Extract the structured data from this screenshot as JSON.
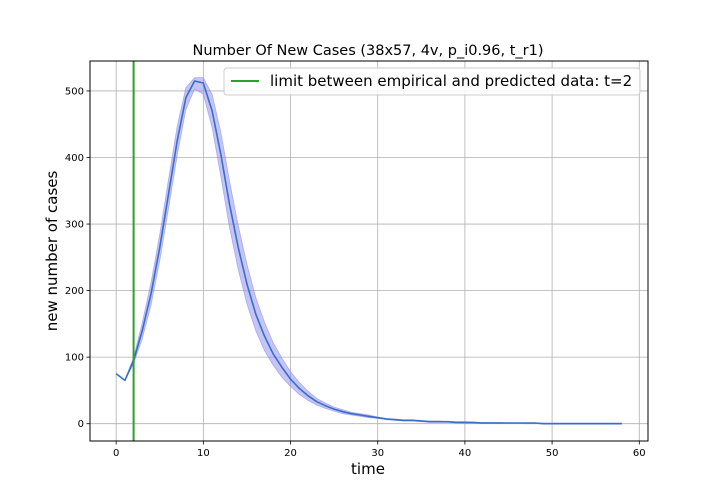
{
  "chart_data": {
    "type": "line",
    "title": "Number Of New Cases (38x57, 4v, p_i0.96, t_r1)",
    "xlabel": "time",
    "ylabel": "new number of cases",
    "xlim": [
      -3,
      61
    ],
    "ylim": [
      -26,
      545
    ],
    "xticks": [
      0,
      10,
      20,
      30,
      40,
      50,
      60
    ],
    "yticks": [
      0,
      100,
      200,
      300,
      400,
      500
    ],
    "grid": true,
    "legend_position": "top-right",
    "series": [
      {
        "name": "",
        "color": "#3a6fc4",
        "x": [
          0,
          1,
          2,
          3,
          4,
          5,
          6,
          7,
          8,
          9,
          10,
          11,
          12,
          13,
          14,
          15,
          16,
          17,
          18,
          19,
          20,
          21,
          22,
          23,
          24,
          25,
          26,
          27,
          28,
          29,
          30,
          31,
          32,
          33,
          34,
          35,
          36,
          37,
          38,
          39,
          40,
          41,
          42,
          43,
          44,
          45,
          46,
          47,
          48,
          49,
          50,
          51,
          52,
          53,
          54,
          55,
          56,
          57,
          58
        ],
        "y": [
          75,
          65,
          95,
          140,
          195,
          265,
          345,
          425,
          490,
          515,
          512,
          470,
          405,
          330,
          265,
          210,
          165,
          132,
          105,
          85,
          67,
          53,
          42,
          33,
          27,
          22,
          18,
          15,
          13,
          11,
          9,
          7,
          6,
          5,
          5,
          4,
          3,
          3,
          3,
          2,
          2,
          2,
          1,
          1,
          1,
          1,
          1,
          1,
          1,
          0,
          0,
          0,
          0,
          0,
          0,
          0,
          0,
          0,
          0
        ],
        "band_lower": [
          75,
          65,
          90,
          128,
          178,
          245,
          323,
          403,
          472,
          503,
          495,
          445,
          372,
          295,
          232,
          180,
          140,
          110,
          88,
          70,
          56,
          44,
          35,
          28,
          23,
          19,
          15,
          13,
          11,
          9,
          8,
          6,
          5,
          4,
          4,
          3,
          2,
          2,
          2,
          2,
          1,
          1,
          1,
          1,
          1,
          1,
          1,
          0,
          0,
          0,
          0,
          0,
          0,
          0,
          0,
          0,
          0,
          0,
          0
        ],
        "band_upper": [
          75,
          65,
          100,
          152,
          212,
          285,
          367,
          447,
          505,
          520,
          520,
          495,
          438,
          365,
          298,
          240,
          190,
          153,
          122,
          99,
          78,
          62,
          49,
          38,
          31,
          25,
          21,
          17,
          15,
          13,
          10,
          8,
          7,
          6,
          6,
          5,
          4,
          4,
          3,
          3,
          3,
          2,
          2,
          2,
          2,
          1,
          1,
          1,
          1,
          1,
          1,
          1,
          1,
          1,
          1,
          1,
          1,
          1,
          1
        ],
        "band_color": "#8a8af0"
      }
    ],
    "vertical_line": {
      "x": 2,
      "color": "#2ca02c",
      "label": "limit between empirical and predicted data: t=2"
    }
  }
}
